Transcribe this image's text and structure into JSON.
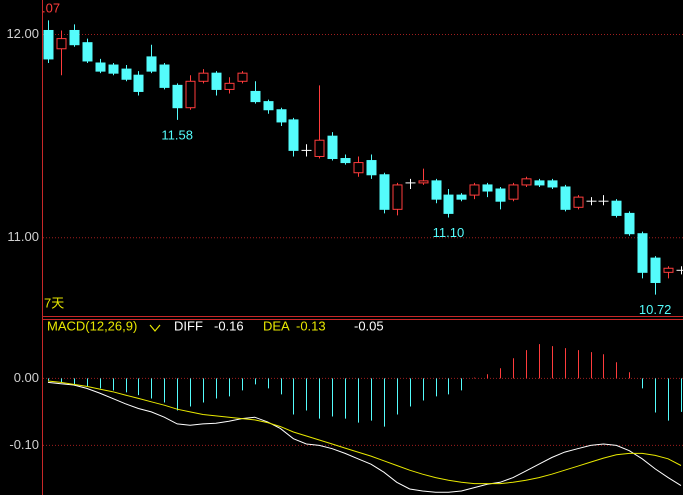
{
  "chart_data": [
    {
      "type": "candlestick",
      "top_label": ".07",
      "period_label": "7天",
      "annotations": [
        "11.58",
        "11.10",
        "10.72"
      ],
      "up_color": "#ff3c3c",
      "down_color": "#54fcfc",
      "flat_color": "#ffffff",
      "annotation_color": "#54fcfc",
      "ylim": [
        10.62,
        12.17
      ],
      "yticks": [
        {
          "value": 12,
          "label": "12.00"
        },
        {
          "value": 11,
          "label": "11.00"
        }
      ],
      "grid": true,
      "open": [
        12.02,
        11.93,
        12.02,
        11.96,
        11.86,
        11.85,
        11.83,
        11.8,
        11.89,
        11.85,
        11.75,
        11.64,
        11.77,
        11.81,
        11.73,
        11.77,
        11.72,
        11.67,
        11.63,
        11.58,
        11.43,
        11.4,
        11.5,
        11.39,
        11.32,
        11.38,
        11.31,
        11.14,
        11.27,
        11.27,
        11.28,
        11.21,
        11.21,
        11.21,
        11.26,
        11.24,
        11.19,
        11.26,
        11.28,
        11.28,
        11.25,
        11.15,
        11.18,
        11.18,
        11.18,
        11.12,
        11.02,
        10.9,
        10.83,
        10.84
      ],
      "close": [
        11.88,
        11.98,
        11.95,
        11.87,
        11.82,
        11.81,
        11.78,
        11.72,
        11.82,
        11.74,
        11.64,
        11.77,
        11.81,
        11.73,
        11.76,
        11.81,
        11.67,
        11.63,
        11.57,
        11.43,
        11.43,
        11.48,
        11.39,
        11.37,
        11.37,
        11.31,
        11.14,
        11.26,
        11.27,
        11.28,
        11.19,
        11.12,
        11.19,
        11.26,
        11.23,
        11.18,
        11.26,
        11.29,
        11.26,
        11.25,
        11.14,
        11.2,
        11.18,
        11.18,
        11.11,
        11.02,
        10.83,
        10.78,
        10.85,
        10.84
      ],
      "high": [
        12.07,
        12.02,
        12.05,
        11.98,
        11.88,
        11.86,
        11.85,
        11.82,
        11.95,
        11.86,
        11.76,
        11.8,
        11.83,
        11.82,
        11.79,
        11.82,
        11.77,
        11.68,
        11.64,
        11.59,
        11.46,
        11.75,
        11.52,
        11.41,
        11.4,
        11.41,
        11.32,
        11.27,
        11.29,
        11.34,
        11.29,
        11.24,
        11.22,
        11.27,
        11.27,
        11.25,
        11.27,
        11.3,
        11.29,
        11.29,
        11.26,
        11.21,
        11.2,
        11.21,
        11.19,
        11.13,
        11.03,
        10.91,
        10.86,
        10.86
      ],
      "low": [
        11.86,
        11.8,
        11.94,
        11.86,
        11.81,
        11.8,
        11.77,
        11.7,
        11.81,
        11.73,
        11.58,
        11.63,
        11.76,
        11.7,
        11.71,
        11.76,
        11.66,
        11.61,
        11.55,
        11.4,
        11.4,
        11.39,
        11.38,
        11.36,
        11.3,
        11.29,
        11.12,
        11.11,
        11.24,
        11.26,
        11.17,
        11.1,
        11.18,
        11.19,
        11.2,
        11.14,
        11.18,
        11.25,
        11.25,
        11.24,
        11.13,
        11.14,
        11.16,
        11.16,
        11.1,
        11.01,
        10.8,
        10.72,
        10.8,
        10.82
      ]
    },
    {
      "type": "macd",
      "title": "MACD(12,26,9)",
      "ylim": [
        -0.174,
        0.087
      ],
      "yticks": [
        {
          "value": 0,
          "label": "0.00"
        },
        {
          "value": -0.1,
          "label": "-0.10"
        }
      ],
      "grid": true,
      "series": [
        {
          "name": "DIFF",
          "color": "#ffffff",
          "values": [
            -0.006,
            -0.008,
            -0.01,
            -0.015,
            -0.022,
            -0.03,
            -0.038,
            -0.045,
            -0.05,
            -0.058,
            -0.068,
            -0.07,
            -0.068,
            -0.067,
            -0.064,
            -0.06,
            -0.058,
            -0.065,
            -0.075,
            -0.09,
            -0.098,
            -0.1,
            -0.105,
            -0.112,
            -0.12,
            -0.128,
            -0.14,
            -0.155,
            -0.165,
            -0.168,
            -0.17,
            -0.17,
            -0.168,
            -0.163,
            -0.158,
            -0.155,
            -0.148,
            -0.138,
            -0.128,
            -0.118,
            -0.11,
            -0.105,
            -0.1,
            -0.098,
            -0.1,
            -0.108,
            -0.12,
            -0.135,
            -0.148,
            -0.16
          ]
        },
        {
          "name": "DEA",
          "color": "#e8e800",
          "values": [
            -0.004,
            -0.006,
            -0.009,
            -0.012,
            -0.016,
            -0.02,
            -0.025,
            -0.03,
            -0.035,
            -0.04,
            -0.046,
            -0.05,
            -0.054,
            -0.056,
            -0.058,
            -0.06,
            -0.062,
            -0.066,
            -0.072,
            -0.08,
            -0.086,
            -0.092,
            -0.098,
            -0.104,
            -0.11,
            -0.116,
            -0.123,
            -0.13,
            -0.137,
            -0.143,
            -0.148,
            -0.152,
            -0.155,
            -0.157,
            -0.157,
            -0.157,
            -0.155,
            -0.152,
            -0.148,
            -0.143,
            -0.137,
            -0.131,
            -0.125,
            -0.119,
            -0.114,
            -0.112,
            -0.112,
            -0.115,
            -0.12,
            -0.13
          ]
        },
        {
          "name": "MACD",
          "color": "#ffffff",
          "positive_color": "#ff3c3c",
          "negative_color": "#54fcfc",
          "values": [
            -0.003,
            -0.006,
            -0.009,
            -0.012,
            -0.015,
            -0.018,
            -0.021,
            -0.025,
            -0.03,
            -0.036,
            -0.048,
            -0.042,
            -0.036,
            -0.03,
            -0.027,
            -0.018,
            -0.009,
            -0.015,
            -0.024,
            -0.054,
            -0.048,
            -0.06,
            -0.057,
            -0.06,
            -0.066,
            -0.063,
            -0.072,
            -0.054,
            -0.042,
            -0.033,
            -0.027,
            -0.024,
            -0.018,
            0.001,
            0.006,
            0.015,
            0.03,
            0.042,
            0.051,
            0.048,
            0.045,
            0.042,
            0.039,
            0.036,
            0.024,
            0.009,
            -0.015,
            -0.051,
            -0.063,
            -0.05
          ]
        }
      ]
    }
  ]
}
